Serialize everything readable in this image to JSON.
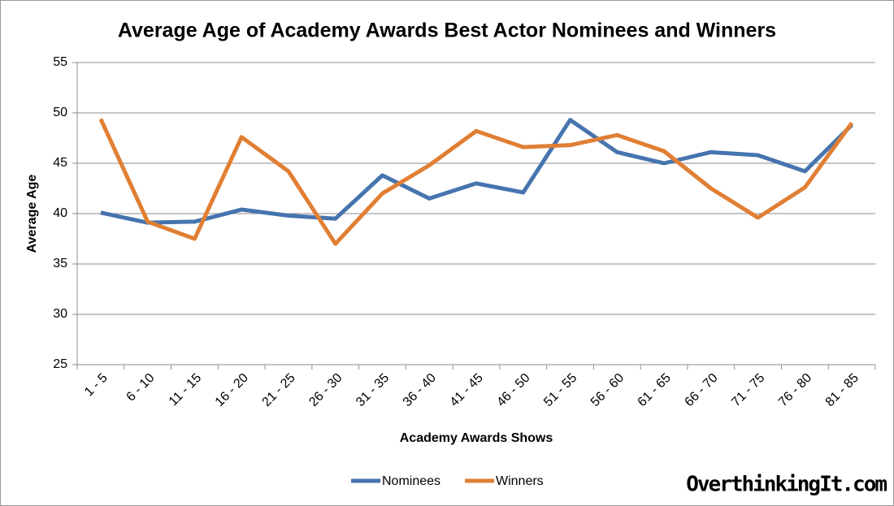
{
  "chart_data": {
    "type": "line",
    "title": "Average Age of Academy Awards Best Actor Nominees and Winners",
    "x_label": "Academy Awards Shows",
    "y_label": "Average Age",
    "categories": [
      "1 - 5",
      "6 - 10",
      "11 - 15",
      "16 - 20",
      "21 - 25",
      "26 - 30",
      "31 - 35",
      "36 - 40",
      "41 - 45",
      "46 - 50",
      "51 - 55",
      "56 - 60",
      "61 - 65",
      "66 - 70",
      "71 - 75",
      "76 - 80",
      "81 - 85"
    ],
    "series": [
      {
        "name": "Nominees",
        "color": "#4674ae",
        "values": [
          40.1,
          39.1,
          39.2,
          40.4,
          39.8,
          39.5,
          43.8,
          41.5,
          43.0,
          42.1,
          49.3,
          46.1,
          45.0,
          46.1,
          45.8,
          44.2,
          48.8
        ]
      },
      {
        "name": "Winners",
        "color": "#e07f34",
        "values": [
          49.4,
          39.2,
          37.5,
          47.6,
          44.2,
          37.0,
          42.0,
          44.8,
          48.2,
          46.6,
          46.8,
          47.8,
          46.2,
          42.5,
          39.6,
          42.6,
          49.0
        ]
      }
    ],
    "ylim": [
      25,
      55
    ],
    "yticks": [
      25,
      30,
      35,
      40,
      45,
      50,
      55
    ],
    "grid": true,
    "legend": "bottom",
    "watermark": "OverthinkingIt.com"
  }
}
